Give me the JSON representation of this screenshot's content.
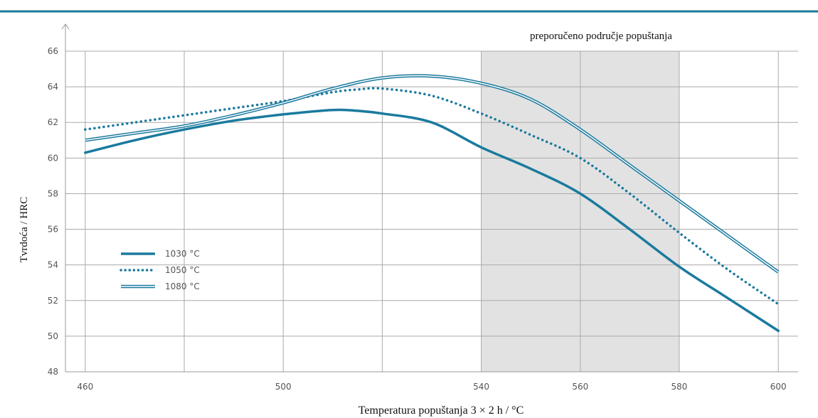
{
  "chart_data": {
    "type": "line",
    "title": "",
    "xlabel": "Temperatura popuštanja 3 × 2 h / °C",
    "ylabel": "Tvrdoća / HRC",
    "xlim": [
      456,
      604
    ],
    "ylim": [
      48,
      66
    ],
    "x_ticks": [
      460,
      500,
      540,
      560,
      580,
      600
    ],
    "x_tick_labels": [
      "460",
      "500",
      "540",
      "560",
      "580",
      "600"
    ],
    "x_gridlines": [
      460,
      480,
      500,
      520,
      540,
      560,
      580,
      600
    ],
    "y_ticks": [
      48,
      50,
      52,
      54,
      56,
      58,
      60,
      62,
      64,
      66
    ],
    "y_tick_labels": [
      "48",
      "50",
      "52",
      "54",
      "56",
      "58",
      "60",
      "62",
      "64",
      "66"
    ],
    "grid": true,
    "legend_position": "bottom-left",
    "shaded_region": {
      "x": [
        540,
        580
      ],
      "label": "preporučeno područje popuštanja"
    },
    "colors": {
      "line": "#1a7a9e",
      "shade": "#e2e2e2",
      "grid": "#aaaaaa",
      "header_rule": "#1a7a9e"
    },
    "series": [
      {
        "name": "1030 °C",
        "style": "solid",
        "x": [
          460,
          470,
          480,
          490,
          500,
          510,
          515,
          520,
          530,
          540,
          550,
          560,
          570,
          580,
          590,
          600
        ],
        "y": [
          60.3,
          61.0,
          61.6,
          62.1,
          62.45,
          62.7,
          62.65,
          62.5,
          62.0,
          60.6,
          59.4,
          58.0,
          56.0,
          53.9,
          52.1,
          50.3
        ]
      },
      {
        "name": "1050 °C",
        "style": "dotted",
        "x": [
          460,
          470,
          480,
          490,
          500,
          510,
          515,
          520,
          530,
          540,
          550,
          560,
          570,
          580,
          590,
          600
        ],
        "y": [
          61.6,
          62.0,
          62.4,
          62.8,
          63.2,
          63.7,
          63.85,
          63.9,
          63.5,
          62.5,
          61.3,
          60.0,
          58.0,
          55.8,
          53.7,
          51.8
        ]
      },
      {
        "name": "1080 °C",
        "style": "double",
        "x": [
          460,
          470,
          480,
          490,
          500,
          510,
          520,
          530,
          540,
          550,
          560,
          570,
          580,
          590,
          600
        ],
        "y": [
          61.0,
          61.4,
          61.8,
          62.4,
          63.1,
          63.9,
          64.5,
          64.6,
          64.2,
          63.3,
          61.6,
          59.6,
          57.6,
          55.6,
          53.6
        ]
      }
    ]
  }
}
